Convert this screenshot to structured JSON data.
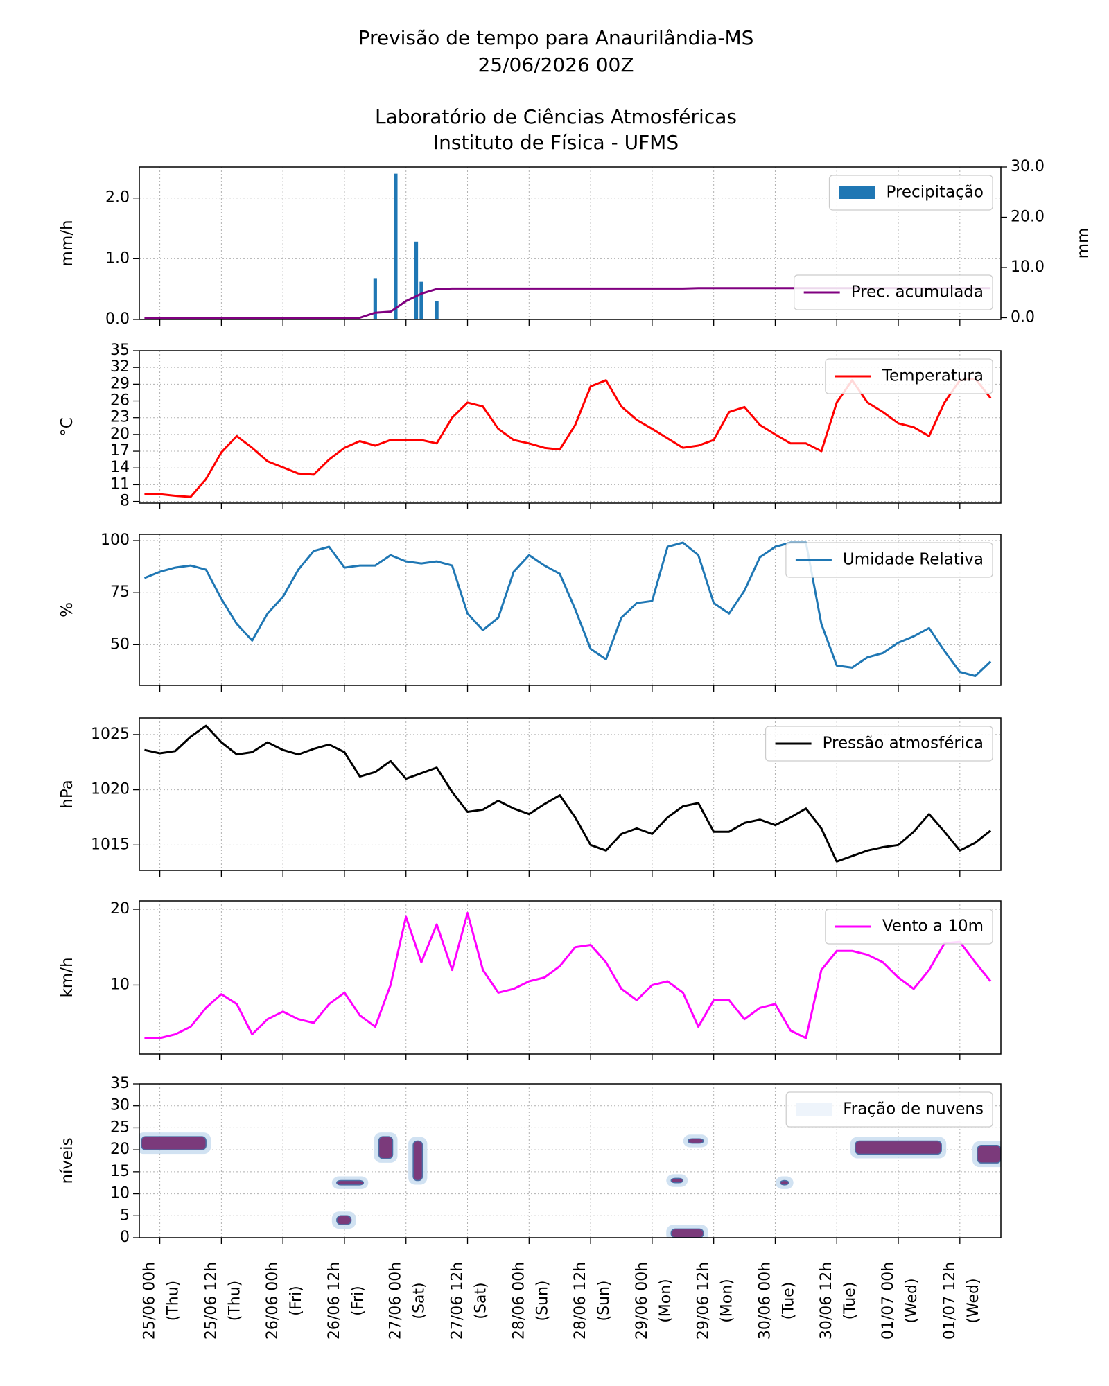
{
  "title_lines": [
    "Previsão de tempo para Anaurilândia-MS",
    "25/06/2026 00Z",
    "Laboratório de Ciências Atmosféricas",
    "Instituto de Física - UFMS"
  ],
  "time_axis": {
    "x": [
      -3,
      0,
      3,
      6,
      9,
      12,
      15,
      18,
      21,
      24,
      27,
      30,
      33,
      36,
      39,
      42,
      45,
      48,
      51,
      54,
      57,
      60,
      63,
      66,
      69,
      72,
      75,
      78,
      81,
      84,
      87,
      90,
      93,
      96,
      99,
      102,
      105,
      108,
      111,
      114,
      117,
      120,
      123,
      126,
      129,
      132,
      135,
      138,
      141,
      144,
      147,
      150,
      153,
      156,
      159,
      162
    ],
    "xlim": [
      -4,
      164
    ],
    "xticks": [
      {
        "value": 0,
        "label": "25/06 00h\n(Thu)"
      },
      {
        "value": 12,
        "label": "25/06 12h\n(Thu)"
      },
      {
        "value": 24,
        "label": "26/06 00h\n(Fri)"
      },
      {
        "value": 36,
        "label": "26/06 12h\n(Fri)"
      },
      {
        "value": 48,
        "label": "27/06 00h\n(Sat)"
      },
      {
        "value": 60,
        "label": "27/06 12h\n(Sat)"
      },
      {
        "value": 72,
        "label": "28/06 00h\n(Sun)"
      },
      {
        "value": 84,
        "label": "28/06 12h\n(Sun)"
      },
      {
        "value": 96,
        "label": "29/06 00h\n(Mon)"
      },
      {
        "value": 108,
        "label": "29/06 12h\n(Mon)"
      },
      {
        "value": 120,
        "label": "30/06 00h\n(Tue)"
      },
      {
        "value": 132,
        "label": "30/06 12h\n(Tue)"
      },
      {
        "value": 144,
        "label": "01/07 00h\n(Wed)"
      },
      {
        "value": 156,
        "label": "01/07 12h\n(Wed)"
      }
    ],
    "grid": true
  },
  "chart_data": [
    {
      "type": "bar",
      "ylabel": "mm/h",
      "y2label": "mm",
      "ylim": [
        0,
        2.51
      ],
      "y2lim": [
        -0.35,
        30
      ],
      "yticks": [
        {
          "value": 0,
          "label": "0.0"
        },
        {
          "value": 1,
          "label": "1.0"
        },
        {
          "value": 2,
          "label": "2.0"
        }
      ],
      "y2ticks": [
        {
          "value": 0,
          "label": "0.0"
        },
        {
          "value": 10,
          "label": "10.0"
        },
        {
          "value": 20,
          "label": "20.0"
        },
        {
          "value": 30,
          "label": "30.0"
        }
      ],
      "grid": true,
      "series": [
        {
          "name": "Precipitação",
          "type": "bar",
          "color": "#1f77b4",
          "legend": "upper right",
          "x": [
            42,
            46,
            50,
            51,
            54
          ],
          "values": [
            0.68,
            2.4,
            1.28,
            0.62,
            0.3
          ]
        },
        {
          "name": "Prec. acumulada",
          "type": "line",
          "axis": "y2",
          "color": "#800080",
          "legend": "lower right",
          "values": [
            0,
            0,
            0,
            0,
            0,
            0,
            0,
            0,
            0,
            0,
            0,
            0,
            0,
            0,
            0,
            1,
            1.2,
            3.3,
            4.8,
            5.7,
            5.8,
            5.8,
            5.8,
            5.8,
            5.8,
            5.8,
            5.8,
            5.8,
            5.8,
            5.8,
            5.8,
            5.8,
            5.8,
            5.8,
            5.8,
            5.8,
            5.9,
            5.9,
            5.9,
            5.9,
            5.9,
            5.9,
            5.9,
            5.9,
            5.9,
            5.9,
            5.9,
            5.9,
            5.9,
            5.9,
            5.9,
            5.9,
            5.9,
            5.9,
            5.9,
            5.9
          ]
        }
      ]
    },
    {
      "type": "line",
      "ylabel": "°C",
      "ylim": [
        7.7,
        35
      ],
      "yticks": [
        8,
        11,
        14,
        17,
        20,
        23,
        26,
        29,
        32,
        35
      ],
      "grid": true,
      "series": [
        {
          "name": "Temperatura",
          "color": "#ff0000",
          "legend": "upper right",
          "values": [
            9.3,
            9.3,
            9,
            8.8,
            12,
            16.8,
            19.7,
            17.6,
            15.2,
            14.1,
            13,
            12.8,
            15.5,
            17.6,
            18.8,
            18,
            19,
            19,
            19,
            18.4,
            23,
            25.7,
            25,
            21,
            19,
            18.4,
            17.6,
            17.3,
            21.7,
            28.6,
            29.7,
            25,
            22.6,
            21,
            19.3,
            17.6,
            18,
            19,
            24,
            24.9,
            21.7,
            20,
            18.4,
            18.4,
            17,
            25.7,
            29.7,
            25.7,
            24,
            22,
            21.3,
            19.7,
            25.7,
            29.7,
            30,
            26.5
          ]
        }
      ]
    },
    {
      "type": "line",
      "ylabel": "%",
      "ylim": [
        30.5,
        103
      ],
      "yticks": [
        50,
        75,
        100
      ],
      "grid": true,
      "series": [
        {
          "name": "Umidade Relativa",
          "color": "#1f77b4",
          "legend": "upper right",
          "values": [
            82,
            85,
            87,
            88,
            86,
            72,
            60,
            52,
            65,
            73,
            86,
            95,
            97,
            87,
            88,
            88,
            93,
            90,
            89,
            90,
            88,
            65,
            57,
            63,
            85,
            93,
            88,
            84,
            67,
            48,
            43,
            63,
            70,
            71,
            97,
            99,
            93,
            70,
            65,
            76,
            92,
            97,
            99,
            99,
            60,
            40,
            39,
            44,
            46,
            51,
            54,
            58,
            47,
            37,
            35,
            42
          ]
        }
      ]
    },
    {
      "type": "line",
      "ylabel": "hPa",
      "ylim": [
        1012.7,
        1026.5
      ],
      "yticks": [
        1015,
        1020,
        1025
      ],
      "grid": true,
      "series": [
        {
          "name": "Pressão atmosférica",
          "color": "#000000",
          "legend": "upper right",
          "values": [
            1023.6,
            1023.3,
            1023.5,
            1024.8,
            1025.8,
            1024.3,
            1023.2,
            1023.4,
            1024.3,
            1023.6,
            1023.2,
            1023.7,
            1024.1,
            1023.4,
            1021.2,
            1021.6,
            1022.6,
            1021,
            1021.5,
            1022,
            1019.8,
            1018,
            1018.2,
            1019,
            1018.3,
            1017.8,
            1018.7,
            1019.5,
            1017.5,
            1015,
            1014.5,
            1016,
            1016.5,
            1016,
            1017.5,
            1018.5,
            1018.8,
            1016.2,
            1016.2,
            1017,
            1017.3,
            1016.8,
            1017.5,
            1018.3,
            1016.5,
            1013.5,
            1014,
            1014.5,
            1014.8,
            1015,
            1016.2,
            1017.8,
            1016.2,
            1014.5,
            1015.2,
            1016.3
          ]
        }
      ]
    },
    {
      "type": "line",
      "ylabel": "km/h",
      "ylim": [
        0.9,
        21.1
      ],
      "yticks": [
        10,
        20
      ],
      "grid": true,
      "series": [
        {
          "name": "Vento a 10m",
          "color": "#ff00ff",
          "legend": "upper right",
          "values": [
            3,
            3,
            3.5,
            4.5,
            7,
            8.8,
            7.5,
            3.5,
            5.5,
            6.5,
            5.5,
            5,
            7.5,
            9,
            6,
            4.5,
            10,
            19,
            13,
            18,
            12,
            19.5,
            12,
            9,
            9.5,
            10.5,
            11,
            12.5,
            15,
            15.3,
            13,
            9.5,
            8,
            10,
            10.5,
            9,
            4.5,
            8,
            8,
            5.5,
            7,
            7.5,
            4,
            3,
            12,
            14.5,
            14.5,
            14,
            13,
            11,
            9.5,
            12,
            15.5,
            15.7,
            13,
            10.5
          ]
        }
      ]
    },
    {
      "type": "contour",
      "ylabel": "níveis",
      "ylim": [
        0,
        35
      ],
      "yticks": [
        0,
        5,
        10,
        15,
        20,
        25,
        30,
        35
      ],
      "grid": true,
      "series": [
        {
          "name": "Fração de nuvens",
          "color": "#7b3a7b",
          "legend": "upper right",
          "patches": [
            {
              "x": [
                -3.6,
                9
              ],
              "levels": [
                20,
                23
              ]
            },
            {
              "x": [
                34.5,
                37.3
              ],
              "levels": [
                3,
                5
              ]
            },
            {
              "x": [
                34.5,
                39.7
              ],
              "levels": [
                12,
                13
              ]
            },
            {
              "x": [
                42.7,
                45.4
              ],
              "levels": [
                18,
                23
              ]
            },
            {
              "x": [
                49.4,
                51.2
              ],
              "levels": [
                13,
                22
              ]
            },
            {
              "x": [
                99.7,
                106
              ],
              "levels": [
                0,
                2
              ]
            },
            {
              "x": [
                99.7,
                102
              ],
              "levels": [
                12.5,
                13.5
              ]
            },
            {
              "x": [
                103,
                106
              ],
              "levels": [
                21.5,
                22.5
              ]
            },
            {
              "x": [
                121,
                122.6
              ],
              "levels": [
                12,
                13
              ]
            },
            {
              "x": [
                135.6,
                152.4
              ],
              "levels": [
                19,
                22
              ]
            },
            {
              "x": [
                159.4,
                164
              ],
              "levels": [
                17,
                21
              ]
            }
          ]
        }
      ]
    }
  ]
}
